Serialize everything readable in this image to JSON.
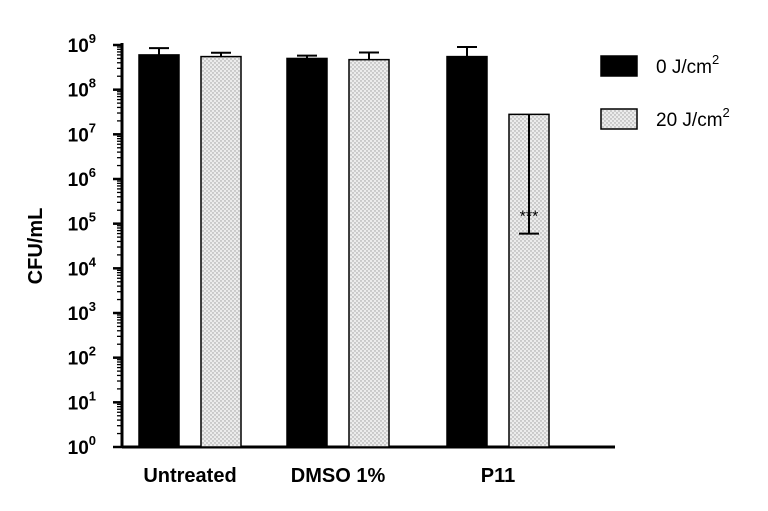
{
  "chart_data": {
    "type": "bar",
    "title": "",
    "xlabel": "",
    "ylabel": "CFU/mL",
    "yscale": "log",
    "ylim": [
      1,
      1000000000
    ],
    "ytick_exponents": [
      0,
      1,
      2,
      3,
      4,
      5,
      6,
      7,
      8,
      9
    ],
    "ytick_base": "10",
    "categories": [
      "Untreated",
      "DMSO 1%",
      "P11"
    ],
    "series": [
      {
        "name": "0 J/cm²",
        "legend_text": "0 J/cm",
        "legend_sup": "2",
        "fill": "solid",
        "color": "#000000",
        "values": [
          600000000,
          500000000,
          550000000
        ],
        "error_upper": [
          850000000,
          580000000,
          900000000
        ]
      },
      {
        "name": "20 J/cm²",
        "legend_text": "20 J/cm",
        "legend_sup": "2",
        "fill": "dotted",
        "color": "#e8e8e8",
        "values": [
          550000000,
          470000000,
          28000000
        ],
        "error_upper": [
          670000000,
          680000000,
          60000
        ]
      }
    ],
    "overrides_note": "",
    "annotations": [
      {
        "category_index": 2,
        "series_index": 1,
        "text": "***"
      }
    ],
    "legend_position": "top-right",
    "grid": false
  }
}
